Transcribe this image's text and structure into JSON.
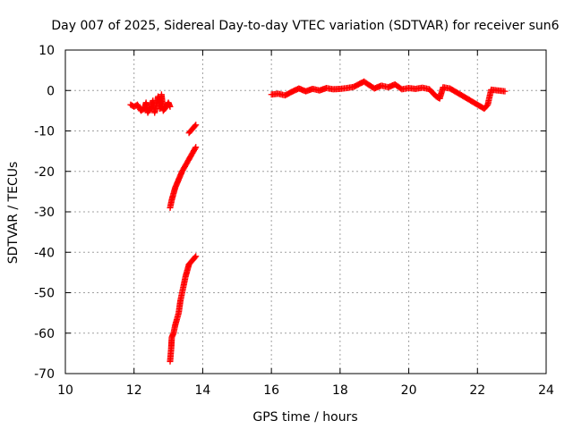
{
  "chart_data": {
    "type": "scatter",
    "title": "Day 007 of 2025, Sidereal Day-to-day VTEC variation (SDTVAR) for receiver sun6",
    "xlabel": "GPS time / hours",
    "ylabel": "SDTVAR / TECUs",
    "xlim": [
      10,
      24
    ],
    "ylim": [
      -70,
      10
    ],
    "xticks": [
      10,
      12,
      14,
      16,
      18,
      20,
      22,
      24
    ],
    "yticks": [
      10,
      0,
      -10,
      -20,
      -30,
      -40,
      -50,
      -60,
      -70
    ],
    "grid": true,
    "legend": "none",
    "marker": "+",
    "color": "#ff0000",
    "series": [
      {
        "segments": [
          [
            [
              11.9,
              -3.5
            ],
            [
              12.0,
              -4.0
            ],
            [
              12.1,
              -3.5
            ],
            [
              12.2,
              -5.0
            ],
            [
              12.3,
              -4.5
            ],
            [
              12.35,
              -3.0
            ],
            [
              12.4,
              -5.5
            ],
            [
              12.5,
              -4.0
            ],
            [
              12.55,
              -2.5
            ],
            [
              12.6,
              -5.5
            ],
            [
              12.7,
              -1.5
            ],
            [
              12.75,
              -4.5
            ],
            [
              12.8,
              -1.0
            ],
            [
              12.85,
              -5.0
            ],
            [
              12.9,
              -4.5
            ],
            [
              13.0,
              -3.0
            ],
            [
              13.05,
              -4.0
            ]
          ],
          [
            [
              13.6,
              -10.5
            ],
            [
              13.7,
              -9.5
            ],
            [
              13.8,
              -8.5
            ]
          ],
          [
            [
              13.05,
              -29
            ],
            [
              13.1,
              -27
            ],
            [
              13.15,
              -25.5
            ],
            [
              13.2,
              -24
            ],
            [
              13.3,
              -22
            ],
            [
              13.4,
              -20
            ],
            [
              13.5,
              -18.5
            ],
            [
              13.6,
              -17
            ],
            [
              13.7,
              -15.5
            ],
            [
              13.8,
              -14
            ]
          ],
          [
            [
              13.05,
              -67
            ],
            [
              13.08,
              -64
            ],
            [
              13.1,
              -61
            ],
            [
              13.15,
              -60
            ],
            [
              13.2,
              -58
            ],
            [
              13.3,
              -55
            ],
            [
              13.35,
              -52
            ],
            [
              13.4,
              -50
            ],
            [
              13.45,
              -48
            ],
            [
              13.5,
              -46
            ],
            [
              13.55,
              -44.5
            ],
            [
              13.6,
              -43
            ],
            [
              13.7,
              -42
            ],
            [
              13.8,
              -41
            ]
          ],
          [
            [
              16.0,
              -1.0
            ],
            [
              16.2,
              -0.8
            ],
            [
              16.4,
              -1.2
            ],
            [
              16.6,
              -0.3
            ],
            [
              16.8,
              0.5
            ],
            [
              17.0,
              -0.2
            ],
            [
              17.2,
              0.4
            ],
            [
              17.4,
              0.0
            ],
            [
              17.6,
              0.6
            ],
            [
              17.8,
              0.3
            ],
            [
              18.0,
              0.4
            ],
            [
              18.2,
              0.6
            ],
            [
              18.4,
              0.9
            ],
            [
              18.6,
              1.8
            ],
            [
              18.7,
              2.2
            ],
            [
              18.8,
              1.6
            ],
            [
              19.0,
              0.5
            ],
            [
              19.2,
              1.2
            ],
            [
              19.4,
              0.8
            ],
            [
              19.6,
              1.5
            ],
            [
              19.8,
              0.3
            ],
            [
              20.0,
              0.6
            ],
            [
              20.2,
              0.4
            ],
            [
              20.4,
              0.7
            ],
            [
              20.6,
              0.3
            ],
            [
              20.8,
              -1.5
            ],
            [
              20.9,
              -2.0
            ],
            [
              21.0,
              0.8
            ],
            [
              21.2,
              0.5
            ],
            [
              21.4,
              -0.5
            ],
            [
              21.6,
              -1.5
            ],
            [
              21.8,
              -2.5
            ],
            [
              22.0,
              -3.5
            ],
            [
              22.2,
              -4.5
            ],
            [
              22.3,
              -3.5
            ],
            [
              22.4,
              0.2
            ],
            [
              22.6,
              0.0
            ],
            [
              22.8,
              -0.2
            ]
          ]
        ]
      }
    ]
  }
}
